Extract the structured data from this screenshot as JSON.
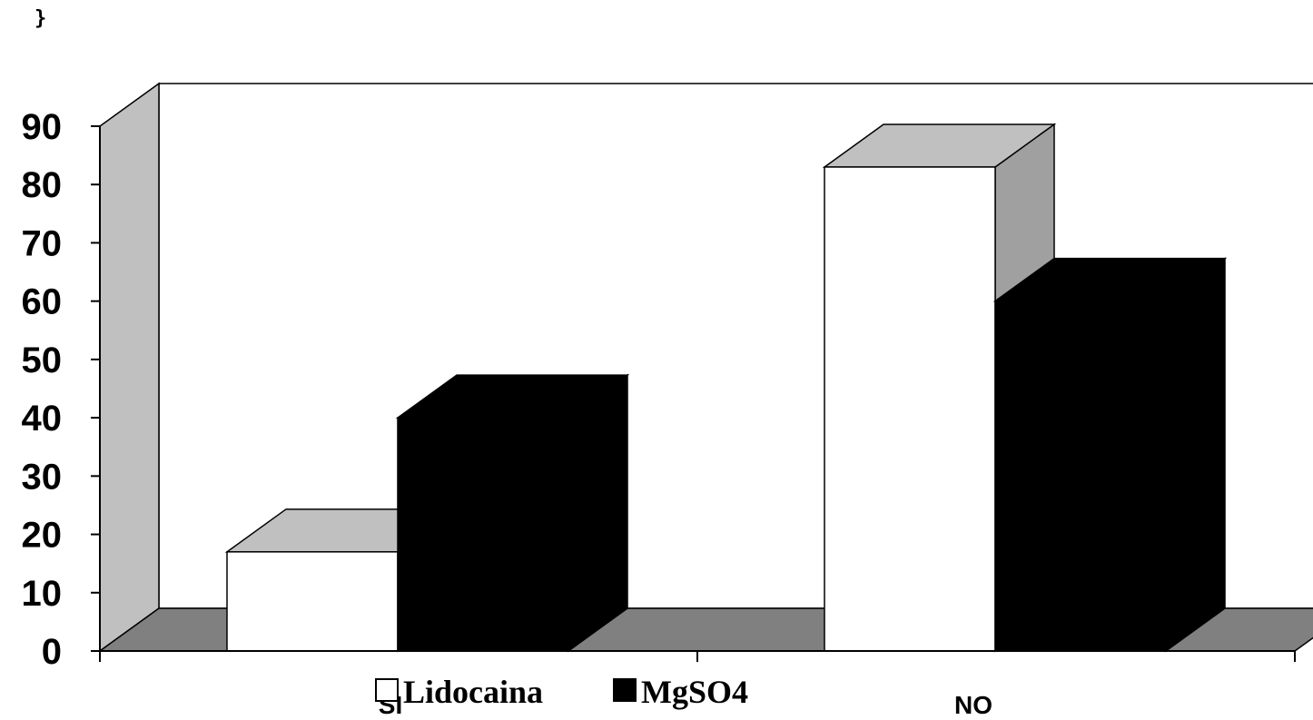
{
  "stray_text": "}",
  "chart_data": {
    "type": "bar",
    "categories": [
      "SI",
      "NO"
    ],
    "series": [
      {
        "name": "Lidocaina",
        "values": [
          17,
          83
        ],
        "color": "#ffffff"
      },
      {
        "name": "MgSO4",
        "values": [
          40,
          60
        ],
        "color": "#000000"
      }
    ],
    "ylim": [
      0,
      90
    ],
    "yticks": [
      "0",
      "10",
      "20",
      "30",
      "40",
      "50",
      "60",
      "70",
      "80",
      "90"
    ],
    "title": "",
    "xlabel": "",
    "ylabel": "",
    "grid": false,
    "legend_position": "bottom",
    "style": "3d",
    "colors": {
      "back_wall": "#ffffff",
      "side_wall": "#c0c0c0",
      "floor": "#808080",
      "bar_top": "#c0c0c0",
      "bar_side": "#a0a0a0"
    }
  }
}
